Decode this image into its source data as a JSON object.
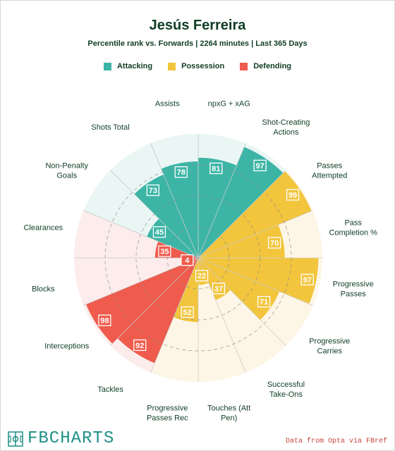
{
  "chart_data": {
    "type": "radar",
    "title": "Jesús Ferreira",
    "subtitle": "Percentile rank vs. Forwards | 2264 minutes | Last 365 Days",
    "legend": [
      {
        "name": "Attacking",
        "color": "#3db5a6"
      },
      {
        "name": "Possession",
        "color": "#f2c53d"
      },
      {
        "name": "Defending",
        "color": "#ef5b4c"
      }
    ],
    "range": [
      0,
      100
    ],
    "grid_rings": [
      25,
      50,
      75
    ],
    "metrics": [
      {
        "label": "npxG + xAG",
        "value": 81,
        "group": "Attacking"
      },
      {
        "label": "Shot-Creating Actions",
        "value": 97,
        "group": "Attacking"
      },
      {
        "label": "Passes Attempted",
        "value": 99,
        "group": "Possession"
      },
      {
        "label": "Pass Completion %",
        "value": 70,
        "group": "Possession"
      },
      {
        "label": "Progressive Passes",
        "value": 97,
        "group": "Possession"
      },
      {
        "label": "Progressive Carries",
        "value": 71,
        "group": "Possession"
      },
      {
        "label": "Successful Take-Ons",
        "value": 37,
        "group": "Possession"
      },
      {
        "label": "Touches (Att Pen)",
        "value": 22,
        "group": "Possession"
      },
      {
        "label": "Progressive Passes Rec",
        "value": 52,
        "group": "Possession"
      },
      {
        "label": "Tackles",
        "value": 92,
        "group": "Defending"
      },
      {
        "label": "Interceptions",
        "value": 98,
        "group": "Defending"
      },
      {
        "label": "Blocks",
        "value": 4,
        "group": "Defending"
      },
      {
        "label": "Clearances",
        "value": 35,
        "group": "Defending"
      },
      {
        "label": "Non-Penalty Goals",
        "value": 45,
        "group": "Attacking"
      },
      {
        "label": "Shots Total",
        "value": 73,
        "group": "Attacking"
      },
      {
        "label": "Assists",
        "value": 78,
        "group": "Attacking"
      }
    ]
  },
  "colors": {
    "Attacking": "#3db5a6",
    "Possession": "#f2c53d",
    "Defending": "#ef5b4c",
    "Attacking_bg": "#e9f6f4",
    "Possession_bg": "#fdf6e6",
    "Defending_bg": "#fcecec",
    "label_text": "#0f3d24"
  },
  "logo": {
    "text": "FBCHARTS",
    "icon": "pitch-icon"
  },
  "source": "Data from Opta via FBref"
}
